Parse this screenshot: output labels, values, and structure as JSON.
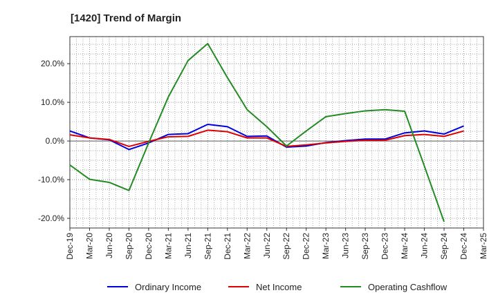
{
  "chart_data": {
    "type": "line",
    "title": "[1420]  Trend of Margin",
    "xlabel": "",
    "ylabel": "",
    "categories": [
      "Dec-19",
      "Mar-20",
      "Jun-20",
      "Sep-20",
      "Dec-20",
      "Mar-21",
      "Jun-21",
      "Sep-21",
      "Dec-21",
      "Mar-22",
      "Jun-22",
      "Sep-22",
      "Dec-22",
      "Mar-23",
      "Jun-23",
      "Sep-23",
      "Dec-23",
      "Mar-24",
      "Jun-24",
      "Sep-24",
      "Dec-24",
      "Mar-25"
    ],
    "ylim": [
      -22.5,
      27
    ],
    "yticks": [
      -20,
      -10,
      0,
      10,
      20
    ],
    "ytick_labels": [
      "-20.0%",
      "-10.0%",
      "0.0%",
      "10.0%",
      "20.0%"
    ],
    "grid": true,
    "legend_position": "bottom",
    "series": [
      {
        "name": "Ordinary Income",
        "color": "#0000dd",
        "values": [
          2.6,
          0.8,
          0.3,
          -2.2,
          -0.5,
          1.7,
          1.9,
          4.3,
          3.7,
          1.2,
          1.3,
          -1.6,
          -1.3,
          -0.4,
          0.1,
          0.5,
          0.5,
          2.1,
          2.6,
          1.8,
          3.9,
          null
        ]
      },
      {
        "name": "Net Income",
        "color": "#dd0000",
        "values": [
          1.6,
          0.8,
          0.4,
          -1.4,
          -0.1,
          1.1,
          1.2,
          2.8,
          2.4,
          0.8,
          0.8,
          -1.4,
          -1.0,
          -0.5,
          -0.1,
          0.2,
          0.2,
          1.4,
          1.7,
          1.2,
          2.6,
          null
        ]
      },
      {
        "name": "Operating Cashflow",
        "color": "#228b22",
        "values": [
          -6.2,
          -9.9,
          -10.7,
          -12.8,
          -0.5,
          11.4,
          20.8,
          25.2,
          16.4,
          8.1,
          3.7,
          -1.3,
          2.6,
          6.3,
          7.1,
          7.8,
          8.1,
          7.7,
          -6.5,
          -20.9,
          null,
          null
        ]
      }
    ]
  }
}
